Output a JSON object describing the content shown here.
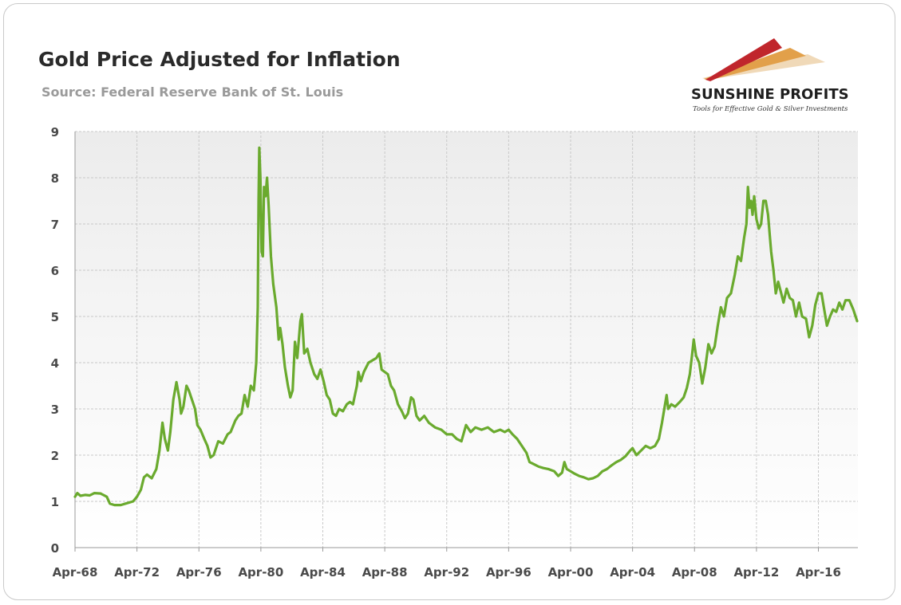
{
  "header": {
    "title": "Gold Price Adjusted for Inflation",
    "subtitle": "Source: Federal Reserve Bank of St. Louis"
  },
  "logo": {
    "name": "SUNSHINE PROFITS",
    "tagline": "Tools for Effective Gold & Silver Investments",
    "icon": "swoosh-logo-icon",
    "colors": [
      "#c0262c",
      "#e2a04a",
      "#f0d9b8"
    ]
  },
  "colors": {
    "line": "#6aaa2e",
    "grid": "#c8c8c8",
    "plot_background_top": "#ececec",
    "plot_background_bottom": "#ffffff"
  },
  "chart_data": {
    "type": "line",
    "title": "Gold Price Adjusted for Inflation",
    "xlabel": "",
    "ylabel": "",
    "ylim": [
      0,
      9
    ],
    "yticks": [
      "0",
      "1",
      "2",
      "3",
      "4",
      "5",
      "6",
      "7",
      "8",
      "9"
    ],
    "xlim": [
      1968.25,
      2018.8
    ],
    "xticks": [
      {
        "label": "Apr-68",
        "x": 1968.25
      },
      {
        "label": "Apr-72",
        "x": 1972.25
      },
      {
        "label": "Apr-76",
        "x": 1976.25
      },
      {
        "label": "Apr-80",
        "x": 1980.25
      },
      {
        "label": "Apr-84",
        "x": 1984.25
      },
      {
        "label": "Apr-88",
        "x": 1988.25
      },
      {
        "label": "Apr-92",
        "x": 1992.25
      },
      {
        "label": "Apr-96",
        "x": 1996.25
      },
      {
        "label": "Apr-00",
        "x": 2000.25
      },
      {
        "label": "Apr-04",
        "x": 2004.25
      },
      {
        "label": "Apr-08",
        "x": 2008.25
      },
      {
        "label": "Apr-12",
        "x": 2012.25
      },
      {
        "label": "Apr-16",
        "x": 2016.25
      }
    ],
    "grid": true,
    "legend": "none",
    "series": [
      {
        "points": [
          [
            1968.25,
            1.1
          ],
          [
            1968.4,
            1.18
          ],
          [
            1968.6,
            1.12
          ],
          [
            1968.9,
            1.14
          ],
          [
            1969.2,
            1.13
          ],
          [
            1969.5,
            1.18
          ],
          [
            1969.9,
            1.17
          ],
          [
            1970.3,
            1.1
          ],
          [
            1970.5,
            0.95
          ],
          [
            1970.8,
            0.92
          ],
          [
            1971.2,
            0.92
          ],
          [
            1971.6,
            0.96
          ],
          [
            1972.0,
            1.0
          ],
          [
            1972.25,
            1.1
          ],
          [
            1972.5,
            1.25
          ],
          [
            1972.7,
            1.52
          ],
          [
            1972.9,
            1.58
          ],
          [
            1973.2,
            1.5
          ],
          [
            1973.5,
            1.7
          ],
          [
            1973.7,
            2.1
          ],
          [
            1973.9,
            2.7
          ],
          [
            1974.05,
            2.35
          ],
          [
            1974.25,
            2.1
          ],
          [
            1974.4,
            2.5
          ],
          [
            1974.6,
            3.2
          ],
          [
            1974.8,
            3.58
          ],
          [
            1975.0,
            3.2
          ],
          [
            1975.1,
            2.9
          ],
          [
            1975.25,
            3.05
          ],
          [
            1975.45,
            3.5
          ],
          [
            1975.6,
            3.4
          ],
          [
            1975.8,
            3.2
          ],
          [
            1976.0,
            3.0
          ],
          [
            1976.15,
            2.65
          ],
          [
            1976.35,
            2.55
          ],
          [
            1976.6,
            2.35
          ],
          [
            1976.8,
            2.2
          ],
          [
            1977.0,
            1.95
          ],
          [
            1977.2,
            2.0
          ],
          [
            1977.5,
            2.3
          ],
          [
            1977.8,
            2.25
          ],
          [
            1978.1,
            2.45
          ],
          [
            1978.3,
            2.5
          ],
          [
            1978.6,
            2.75
          ],
          [
            1978.8,
            2.85
          ],
          [
            1979.0,
            2.9
          ],
          [
            1979.2,
            3.3
          ],
          [
            1979.4,
            3.05
          ],
          [
            1979.6,
            3.5
          ],
          [
            1979.8,
            3.4
          ],
          [
            1979.95,
            4.0
          ],
          [
            1980.05,
            5.2
          ],
          [
            1980.1,
            7.5
          ],
          [
            1980.15,
            8.65
          ],
          [
            1980.22,
            8.0
          ],
          [
            1980.3,
            6.4
          ],
          [
            1980.38,
            6.3
          ],
          [
            1980.45,
            7.8
          ],
          [
            1980.55,
            7.6
          ],
          [
            1980.65,
            8.0
          ],
          [
            1980.75,
            7.4
          ],
          [
            1980.9,
            6.3
          ],
          [
            1981.05,
            5.7
          ],
          [
            1981.25,
            5.2
          ],
          [
            1981.4,
            4.5
          ],
          [
            1981.5,
            4.75
          ],
          [
            1981.65,
            4.4
          ],
          [
            1981.8,
            3.9
          ],
          [
            1982.0,
            3.5
          ],
          [
            1982.15,
            3.25
          ],
          [
            1982.3,
            3.4
          ],
          [
            1982.45,
            4.45
          ],
          [
            1982.6,
            4.1
          ],
          [
            1982.8,
            4.9
          ],
          [
            1982.9,
            5.05
          ],
          [
            1983.05,
            4.2
          ],
          [
            1983.25,
            4.3
          ],
          [
            1983.45,
            4.0
          ],
          [
            1983.7,
            3.75
          ],
          [
            1983.9,
            3.65
          ],
          [
            1984.1,
            3.85
          ],
          [
            1984.3,
            3.6
          ],
          [
            1984.5,
            3.3
          ],
          [
            1984.7,
            3.2
          ],
          [
            1984.9,
            2.9
          ],
          [
            1985.1,
            2.85
          ],
          [
            1985.3,
            3.0
          ],
          [
            1985.55,
            2.95
          ],
          [
            1985.8,
            3.1
          ],
          [
            1986.0,
            3.15
          ],
          [
            1986.2,
            3.1
          ],
          [
            1986.45,
            3.5
          ],
          [
            1986.55,
            3.8
          ],
          [
            1986.7,
            3.6
          ],
          [
            1986.9,
            3.8
          ],
          [
            1987.2,
            4.0
          ],
          [
            1987.45,
            4.05
          ],
          [
            1987.7,
            4.1
          ],
          [
            1987.9,
            4.2
          ],
          [
            1988.05,
            3.85
          ],
          [
            1988.25,
            3.8
          ],
          [
            1988.45,
            3.75
          ],
          [
            1988.65,
            3.5
          ],
          [
            1988.85,
            3.4
          ],
          [
            1989.1,
            3.1
          ],
          [
            1989.35,
            2.95
          ],
          [
            1989.55,
            2.8
          ],
          [
            1989.75,
            2.9
          ],
          [
            1989.95,
            3.25
          ],
          [
            1990.1,
            3.2
          ],
          [
            1990.3,
            2.85
          ],
          [
            1990.5,
            2.75
          ],
          [
            1990.8,
            2.85
          ],
          [
            1991.1,
            2.7
          ],
          [
            1991.5,
            2.6
          ],
          [
            1991.9,
            2.55
          ],
          [
            1992.25,
            2.45
          ],
          [
            1992.6,
            2.45
          ],
          [
            1992.9,
            2.35
          ],
          [
            1993.2,
            2.3
          ],
          [
            1993.5,
            2.65
          ],
          [
            1993.8,
            2.5
          ],
          [
            1994.1,
            2.6
          ],
          [
            1994.5,
            2.55
          ],
          [
            1994.9,
            2.6
          ],
          [
            1995.3,
            2.5
          ],
          [
            1995.7,
            2.55
          ],
          [
            1996.0,
            2.5
          ],
          [
            1996.25,
            2.55
          ],
          [
            1996.5,
            2.45
          ],
          [
            1996.8,
            2.35
          ],
          [
            1997.1,
            2.2
          ],
          [
            1997.4,
            2.05
          ],
          [
            1997.6,
            1.85
          ],
          [
            1997.9,
            1.8
          ],
          [
            1998.2,
            1.75
          ],
          [
            1998.5,
            1.72
          ],
          [
            1998.8,
            1.7
          ],
          [
            1999.2,
            1.65
          ],
          [
            1999.45,
            1.55
          ],
          [
            1999.7,
            1.62
          ],
          [
            1999.85,
            1.85
          ],
          [
            2000.0,
            1.7
          ],
          [
            2000.25,
            1.65
          ],
          [
            2000.5,
            1.6
          ],
          [
            2000.8,
            1.55
          ],
          [
            2001.1,
            1.52
          ],
          [
            2001.4,
            1.48
          ],
          [
            2001.7,
            1.5
          ],
          [
            2002.0,
            1.55
          ],
          [
            2002.3,
            1.65
          ],
          [
            2002.6,
            1.7
          ],
          [
            2002.9,
            1.78
          ],
          [
            2003.2,
            1.85
          ],
          [
            2003.5,
            1.9
          ],
          [
            2003.8,
            1.98
          ],
          [
            2004.1,
            2.1
          ],
          [
            2004.25,
            2.15
          ],
          [
            2004.5,
            2.0
          ],
          [
            2004.8,
            2.1
          ],
          [
            2005.1,
            2.2
          ],
          [
            2005.4,
            2.15
          ],
          [
            2005.7,
            2.2
          ],
          [
            2005.95,
            2.35
          ],
          [
            2006.15,
            2.7
          ],
          [
            2006.3,
            3.0
          ],
          [
            2006.45,
            3.3
          ],
          [
            2006.55,
            3.0
          ],
          [
            2006.75,
            3.1
          ],
          [
            2007.0,
            3.05
          ],
          [
            2007.3,
            3.15
          ],
          [
            2007.55,
            3.25
          ],
          [
            2007.75,
            3.45
          ],
          [
            2007.95,
            3.75
          ],
          [
            2008.1,
            4.2
          ],
          [
            2008.2,
            4.5
          ],
          [
            2008.35,
            4.15
          ],
          [
            2008.55,
            4.0
          ],
          [
            2008.75,
            3.55
          ],
          [
            2008.95,
            3.9
          ],
          [
            2009.15,
            4.4
          ],
          [
            2009.35,
            4.2
          ],
          [
            2009.55,
            4.35
          ],
          [
            2009.75,
            4.8
          ],
          [
            2009.95,
            5.2
          ],
          [
            2010.15,
            5.0
          ],
          [
            2010.35,
            5.4
          ],
          [
            2010.6,
            5.5
          ],
          [
            2010.85,
            5.9
          ],
          [
            2011.05,
            6.3
          ],
          [
            2011.25,
            6.2
          ],
          [
            2011.45,
            6.7
          ],
          [
            2011.6,
            7.0
          ],
          [
            2011.7,
            7.8
          ],
          [
            2011.8,
            7.35
          ],
          [
            2011.9,
            7.5
          ],
          [
            2012.0,
            7.2
          ],
          [
            2012.1,
            7.6
          ],
          [
            2012.25,
            7.1
          ],
          [
            2012.4,
            6.9
          ],
          [
            2012.55,
            7.0
          ],
          [
            2012.7,
            7.5
          ],
          [
            2012.85,
            7.5
          ],
          [
            2013.0,
            7.2
          ],
          [
            2013.2,
            6.4
          ],
          [
            2013.35,
            6.0
          ],
          [
            2013.5,
            5.5
          ],
          [
            2013.65,
            5.75
          ],
          [
            2013.85,
            5.5
          ],
          [
            2014.0,
            5.3
          ],
          [
            2014.2,
            5.6
          ],
          [
            2014.4,
            5.4
          ],
          [
            2014.6,
            5.35
          ],
          [
            2014.8,
            5.0
          ],
          [
            2015.0,
            5.3
          ],
          [
            2015.2,
            5.0
          ],
          [
            2015.45,
            4.95
          ],
          [
            2015.65,
            4.55
          ],
          [
            2015.85,
            4.8
          ],
          [
            2016.05,
            5.25
          ],
          [
            2016.25,
            5.5
          ],
          [
            2016.45,
            5.5
          ],
          [
            2016.6,
            5.2
          ],
          [
            2016.8,
            4.8
          ],
          [
            2017.0,
            5.0
          ],
          [
            2017.2,
            5.15
          ],
          [
            2017.4,
            5.1
          ],
          [
            2017.6,
            5.3
          ],
          [
            2017.8,
            5.15
          ],
          [
            2018.0,
            5.35
          ],
          [
            2018.25,
            5.35
          ],
          [
            2018.5,
            5.15
          ],
          [
            2018.75,
            4.9
          ]
        ]
      }
    ]
  }
}
